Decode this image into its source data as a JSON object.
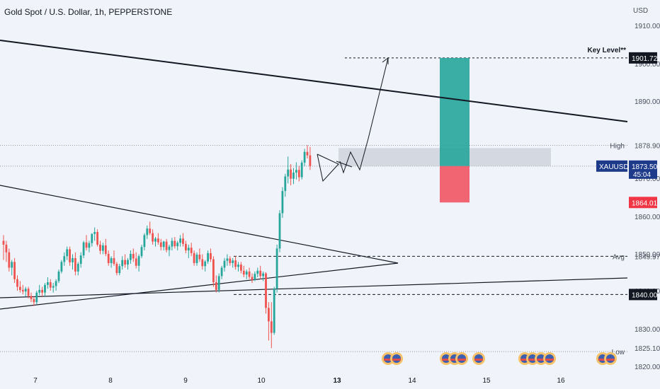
{
  "header": {
    "title": "Gold Spot / U.S. Dollar, 1h, PEPPERSTONE"
  },
  "colors": {
    "background": "#f0f3fa",
    "up": "#26a69a",
    "down": "#ef5350",
    "profit_zone": "#26a69a",
    "loss_zone": "#f23645",
    "supply_zone": "#c8ccd6",
    "label_dark": "#131722",
    "label_blue": "#1e3a8a",
    "label_red": "#f23645"
  },
  "chart_data": {
    "type": "candlestick",
    "currency_label": "USD",
    "ylim": [
      1820,
      1912
    ],
    "y_ticks": [
      "1910.00",
      "1900.00",
      "1890.00",
      "1880.00",
      "1870.00",
      "1860.00",
      "1850.00",
      "1840.00",
      "1830.00",
      "1825.10",
      "1820.00"
    ],
    "x_labels": [
      "7",
      "8",
      "9",
      "10",
      "13",
      "14",
      "15",
      "16"
    ],
    "x_label_bold": "13",
    "horizontal_levels": [
      {
        "label": "Key Level**",
        "price": "1901.72",
        "value": 1901.72,
        "style": "dashed"
      },
      {
        "label": "High",
        "price": "1878.90",
        "value": 1878.9,
        "style": "dotted"
      },
      {
        "label": "XAUUSD",
        "price": "1873.50",
        "countdown": "45:04",
        "value": 1873.5
      },
      {
        "label": "",
        "price": "1864.01",
        "value": 1864.01
      },
      {
        "label": "Avg",
        "price": "1849.97",
        "value": 1849.97,
        "style": "dashed"
      },
      {
        "label": "",
        "price": "1840.00",
        "value": 1840.0,
        "style": "dashed"
      },
      {
        "label": "Low",
        "price": "1825.10",
        "value": 1825.1,
        "style": "dotted"
      }
    ],
    "position": {
      "entry": 1873.5,
      "target": 1901.72,
      "stop": 1864.01
    },
    "supply_zone": {
      "low": 1873.5,
      "high": 1878.2
    },
    "candles": [
      [
        1854,
        1855.5,
        1849,
        1853
      ],
      [
        1853,
        1854,
        1848.5,
        1851
      ],
      [
        1851,
        1852,
        1846,
        1847
      ],
      [
        1847,
        1849,
        1845,
        1848.5
      ],
      [
        1848.5,
        1849.5,
        1843,
        1844
      ],
      [
        1844,
        1845,
        1841,
        1842
      ],
      [
        1842,
        1843.5,
        1840.5,
        1841.2
      ],
      [
        1841.2,
        1842.5,
        1840,
        1840.8
      ],
      [
        1840.8,
        1842,
        1839.5,
        1841.5
      ],
      [
        1841.5,
        1842,
        1839,
        1839.6
      ],
      [
        1839.6,
        1840.5,
        1838,
        1838.8
      ],
      [
        1838.8,
        1839.5,
        1837,
        1838
      ],
      [
        1838,
        1841,
        1837.5,
        1840.5
      ],
      [
        1840.5,
        1842.5,
        1839.8,
        1841.2
      ],
      [
        1841.2,
        1842,
        1839.5,
        1840.5
      ],
      [
        1840.5,
        1843,
        1839.5,
        1842.5
      ],
      [
        1842.5,
        1844.5,
        1841.5,
        1843.2
      ],
      [
        1843.2,
        1844,
        1841,
        1841.8
      ],
      [
        1841.8,
        1843,
        1840.5,
        1842.2
      ],
      [
        1842.2,
        1844,
        1841,
        1843.5
      ],
      [
        1843.5,
        1846.5,
        1843,
        1846
      ],
      [
        1846,
        1849,
        1845.5,
        1848.5
      ],
      [
        1848.5,
        1851,
        1847.5,
        1850
      ],
      [
        1850,
        1852.5,
        1849,
        1851.8
      ],
      [
        1851.8,
        1852.5,
        1847.5,
        1848.4
      ],
      [
        1848.4,
        1850.5,
        1846.5,
        1849.5
      ],
      [
        1849.5,
        1851,
        1845,
        1846
      ],
      [
        1846,
        1848.5,
        1845,
        1848
      ],
      [
        1848,
        1851,
        1847,
        1850.2
      ],
      [
        1850.2,
        1854,
        1849.5,
        1853.6
      ],
      [
        1853.6,
        1855.5,
        1851.5,
        1852.2
      ],
      [
        1852.2,
        1854,
        1851,
        1853.4
      ],
      [
        1853.4,
        1856,
        1852.5,
        1855.8
      ],
      [
        1855.8,
        1857.5,
        1854,
        1856.3
      ],
      [
        1856.3,
        1857,
        1852.5,
        1853
      ],
      [
        1853,
        1854,
        1850.5,
        1851.4
      ],
      [
        1851.4,
        1853.5,
        1850.5,
        1852.8
      ],
      [
        1852.8,
        1854.5,
        1850,
        1850.6
      ],
      [
        1850.6,
        1851.5,
        1847.5,
        1848.2
      ],
      [
        1848.2,
        1850,
        1847,
        1849.5
      ],
      [
        1849.5,
        1851.5,
        1847.5,
        1848
      ],
      [
        1848,
        1848.5,
        1845,
        1845.6
      ],
      [
        1845.6,
        1848,
        1845,
        1847.4
      ],
      [
        1847.4,
        1850,
        1846.5,
        1849
      ],
      [
        1849,
        1850.5,
        1847,
        1847.8
      ],
      [
        1847.8,
        1849.5,
        1846.5,
        1849
      ],
      [
        1849,
        1851.5,
        1848,
        1850.6
      ],
      [
        1850.6,
        1852,
        1848.5,
        1849.4
      ],
      [
        1849.4,
        1851,
        1846.8,
        1847.5
      ],
      [
        1847.5,
        1850.5,
        1846,
        1850
      ],
      [
        1850,
        1853,
        1849.5,
        1852.4
      ],
      [
        1852.4,
        1856,
        1851.5,
        1855.5
      ],
      [
        1855.5,
        1858,
        1854.5,
        1857.2
      ],
      [
        1857.2,
        1859,
        1855.5,
        1856
      ],
      [
        1856,
        1857,
        1853,
        1853.8
      ],
      [
        1853.8,
        1855,
        1852.5,
        1854.6
      ],
      [
        1854.6,
        1856,
        1853,
        1853.6
      ],
      [
        1853.6,
        1854.5,
        1851.5,
        1852.4
      ],
      [
        1852.4,
        1854,
        1851.5,
        1853.8
      ],
      [
        1853.8,
        1854.5,
        1851,
        1851.6
      ],
      [
        1851.6,
        1853,
        1850,
        1852.5
      ],
      [
        1852.5,
        1854.8,
        1851.5,
        1854
      ],
      [
        1854,
        1855,
        1852,
        1852.6
      ],
      [
        1852.6,
        1854,
        1851.5,
        1853.5
      ],
      [
        1853.5,
        1855.5,
        1852.5,
        1854.6
      ],
      [
        1854.6,
        1856,
        1852.5,
        1853.2
      ],
      [
        1853.2,
        1854,
        1850.8,
        1851.5
      ],
      [
        1851.5,
        1853,
        1849.5,
        1852.2
      ],
      [
        1852.2,
        1853.5,
        1850,
        1850.8
      ],
      [
        1850.8,
        1851.5,
        1847.5,
        1848.2
      ],
      [
        1848.2,
        1851,
        1847.5,
        1850.4
      ],
      [
        1850.4,
        1852,
        1848.5,
        1849.2
      ],
      [
        1849.2,
        1850.5,
        1846.5,
        1847.4
      ],
      [
        1847.4,
        1849,
        1846,
        1848.6
      ],
      [
        1848.6,
        1851.5,
        1848,
        1850.8
      ],
      [
        1850.8,
        1852,
        1848.5,
        1849.2
      ],
      [
        1849.2,
        1850,
        1842,
        1843.2
      ],
      [
        1843.2,
        1845,
        1840.5,
        1841.2
      ],
      [
        1841.2,
        1845.5,
        1840.5,
        1844.8
      ],
      [
        1844.8,
        1847.5,
        1844,
        1847
      ],
      [
        1847,
        1849.5,
        1846,
        1848.8
      ],
      [
        1848.8,
        1850.5,
        1847.5,
        1849.4
      ],
      [
        1849.4,
        1850,
        1847.5,
        1848.2
      ],
      [
        1848.2,
        1849.5,
        1847,
        1848.9
      ],
      [
        1848.9,
        1850,
        1846.5,
        1847.2
      ],
      [
        1847.2,
        1848.5,
        1846,
        1847.8
      ],
      [
        1847.8,
        1848.5,
        1845.5,
        1846.2
      ],
      [
        1846.2,
        1847.5,
        1844.5,
        1845.2
      ],
      [
        1845.2,
        1846.5,
        1844,
        1846
      ],
      [
        1846,
        1847,
        1844,
        1844.6
      ],
      [
        1844.6,
        1845.5,
        1843,
        1843.8
      ],
      [
        1843.8,
        1846,
        1843.5,
        1845.4
      ],
      [
        1845.4,
        1847,
        1844.5,
        1846.2
      ],
      [
        1846.2,
        1847.5,
        1844,
        1844.8
      ],
      [
        1844.8,
        1846,
        1843.5,
        1845.5
      ],
      [
        1845.5,
        1845.8,
        1835,
        1836.5
      ],
      [
        1836.5,
        1838,
        1828,
        1833
      ],
      [
        1833,
        1838,
        1826,
        1830
      ],
      [
        1830,
        1842,
        1829.5,
        1841.5
      ],
      [
        1841.5,
        1853,
        1840.5,
        1852
      ],
      [
        1852,
        1862,
        1851,
        1861.2
      ],
      [
        1861.2,
        1868,
        1860,
        1867
      ],
      [
        1867,
        1871.5,
        1865.5,
        1870.8
      ],
      [
        1870.8,
        1876,
        1869,
        1872.6
      ],
      [
        1872.6,
        1874,
        1868.5,
        1870.2
      ],
      [
        1870.2,
        1873,
        1868.8,
        1871.8
      ],
      [
        1871.8,
        1874.5,
        1870,
        1872.5
      ],
      [
        1872.5,
        1873.5,
        1869.5,
        1870.6
      ],
      [
        1870.6,
        1875,
        1870,
        1874.4
      ],
      [
        1874.4,
        1878,
        1873.5,
        1877.2
      ],
      [
        1877.2,
        1879,
        1875.5,
        1876.3
      ],
      [
        1876.3,
        1878.5,
        1872.5,
        1873.5
      ]
    ]
  }
}
